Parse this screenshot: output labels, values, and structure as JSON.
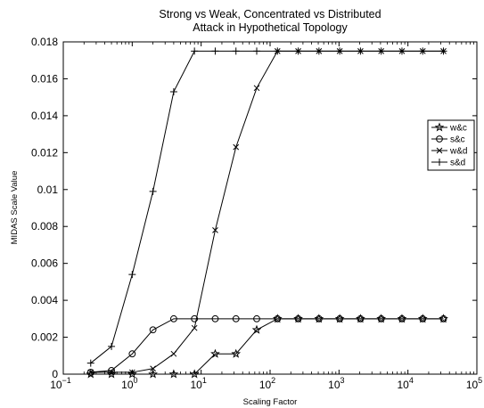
{
  "chart_data": {
    "type": "line",
    "title": [
      "Strong vs Weak, Concentrated vs Distributed",
      "Attack in Hypothetical Topology"
    ],
    "xlabel": "Scaling Factor",
    "ylabel": "MIDAS Scale Value",
    "x_scale": "log",
    "xlim": [
      0.1,
      100000
    ],
    "ylim": [
      0,
      0.018
    ],
    "x_ticks": [
      {
        "value": 0.1,
        "base": "10",
        "exp": "−1"
      },
      {
        "value": 1,
        "base": "10",
        "exp": "0"
      },
      {
        "value": 10,
        "base": "10",
        "exp": "1"
      },
      {
        "value": 100,
        "base": "10",
        "exp": "2"
      },
      {
        "value": 1000,
        "base": "10",
        "exp": "3"
      },
      {
        "value": 10000,
        "base": "10",
        "exp": "4"
      },
      {
        "value": 100000,
        "base": "10",
        "exp": "5"
      }
    ],
    "y_ticks": [
      {
        "value": 0,
        "label": "0"
      },
      {
        "value": 0.002,
        "label": "0.002"
      },
      {
        "value": 0.004,
        "label": "0.004"
      },
      {
        "value": 0.006,
        "label": "0.006"
      },
      {
        "value": 0.008,
        "label": "0.008"
      },
      {
        "value": 0.01,
        "label": "0.01"
      },
      {
        "value": 0.012,
        "label": "0.012"
      },
      {
        "value": 0.014,
        "label": "0.014"
      },
      {
        "value": 0.016,
        "label": "0.016"
      },
      {
        "value": 0.018,
        "label": "0.018"
      }
    ],
    "grid": false,
    "legend": "right",
    "x": [
      0.25,
      0.5,
      1,
      2,
      4,
      8,
      16,
      32,
      64,
      128,
      256,
      512,
      1024,
      2048,
      4096,
      8192,
      16384,
      32768
    ],
    "series": [
      {
        "name": "w&c",
        "marker": "star",
        "values": [
          0,
          0,
          0,
          0,
          0,
          0,
          0.0011,
          0.0011,
          0.0024,
          0.003,
          0.003,
          0.003,
          0.003,
          0.003,
          0.003,
          0.003,
          0.003,
          0.003
        ]
      },
      {
        "name": "s&c",
        "marker": "circle",
        "values": [
          0.0001,
          0.0002,
          0.0011,
          0.0024,
          0.003,
          0.003,
          0.003,
          0.003,
          0.003,
          0.003,
          0.003,
          0.003,
          0.003,
          0.003,
          0.003,
          0.003,
          0.003,
          0.003
        ]
      },
      {
        "name": "w&d",
        "marker": "x",
        "values": [
          0.0001,
          0.0001,
          0.0001,
          0.0003,
          0.0011,
          0.0025,
          0.0078,
          0.0123,
          0.0155,
          0.0175,
          0.0175,
          0.0175,
          0.0175,
          0.0175,
          0.0175,
          0.0175,
          0.0175,
          0.0175
        ]
      },
      {
        "name": "s&d",
        "marker": "plus",
        "values": [
          0.0006,
          0.0015,
          0.0054,
          0.0099,
          0.0153,
          0.0175,
          0.0175,
          0.0175,
          0.0175,
          0.0175,
          0.0175,
          0.0175,
          0.0175,
          0.0175,
          0.0175,
          0.0175,
          0.0175,
          0.0175
        ]
      }
    ]
  }
}
